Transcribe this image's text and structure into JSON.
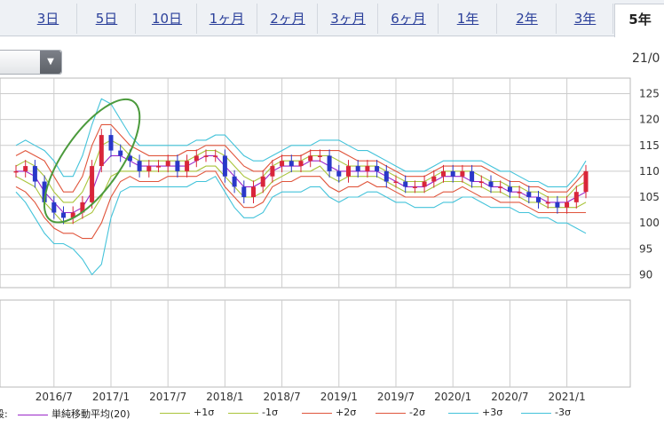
{
  "tabs": [
    {
      "label": "3日",
      "active": false
    },
    {
      "label": "5日",
      "active": false
    },
    {
      "label": "10日",
      "active": false
    },
    {
      "label": "1ヶ月",
      "active": false
    },
    {
      "label": "2ヶ月",
      "active": false
    },
    {
      "label": "3ヶ月",
      "active": false
    },
    {
      "label": "6ヶ月",
      "active": false
    },
    {
      "label": "1年",
      "active": false
    },
    {
      "label": "2年",
      "active": false
    },
    {
      "label": "3年",
      "active": false
    },
    {
      "label": "5年",
      "active": true
    }
  ],
  "date_label": "21/0",
  "legend": {
    "prefix": "段:",
    "items": [
      {
        "label": "単純移動平均(20)",
        "color": "#9b27c9"
      },
      {
        "label": "+1σ",
        "color": "#a9c43a"
      },
      {
        "label": "-1σ",
        "color": "#a9c43a"
      },
      {
        "label": "+2σ",
        "color": "#e0553c"
      },
      {
        "label": "-2σ",
        "color": "#e0553c"
      },
      {
        "label": "+3σ",
        "color": "#43c3da"
      },
      {
        "label": "-3σ",
        "color": "#43c3da"
      }
    ]
  },
  "chart_data": {
    "type": "line",
    "title": "",
    "xlabel": "",
    "ylabel": "",
    "x_ticks": [
      "2016/7",
      "2017/1",
      "2017/7",
      "2018/1",
      "2018/7",
      "2019/1",
      "2019/7",
      "2020/1",
      "2020/7",
      "2021/1"
    ],
    "y_ticks": [
      90,
      95,
      100,
      105,
      110,
      115,
      120,
      125
    ],
    "ylim": [
      87.5,
      128
    ],
    "xlim": [
      "2016/3",
      "2021/3"
    ],
    "grid": true,
    "price_series": {
      "name": "price",
      "color_up": "#d9263a",
      "color_down": "#2a38c8",
      "x": [
        "2016/3",
        "2016/4",
        "2016/5",
        "2016/6",
        "2016/7",
        "2016/8",
        "2016/9",
        "2016/10",
        "2016/11",
        "2016/12",
        "2017/1",
        "2017/2",
        "2017/3",
        "2017/4",
        "2017/5",
        "2017/6",
        "2017/7",
        "2017/8",
        "2017/9",
        "2017/10",
        "2017/11",
        "2017/12",
        "2018/1",
        "2018/2",
        "2018/3",
        "2018/4",
        "2018/5",
        "2018/6",
        "2018/7",
        "2018/8",
        "2018/9",
        "2018/10",
        "2018/11",
        "2018/12",
        "2019/1",
        "2019/2",
        "2019/3",
        "2019/4",
        "2019/5",
        "2019/6",
        "2019/7",
        "2019/8",
        "2019/9",
        "2019/10",
        "2019/11",
        "2019/12",
        "2020/1",
        "2020/2",
        "2020/3",
        "2020/4",
        "2020/5",
        "2020/6",
        "2020/7",
        "2020/8",
        "2020/9",
        "2020/10",
        "2020/11",
        "2020/12",
        "2021/1",
        "2021/2",
        "2021/3"
      ],
      "values": [
        110,
        111,
        108,
        104,
        102,
        101,
        102,
        104,
        111,
        117,
        114,
        113,
        112,
        110,
        111,
        111,
        112,
        110,
        112,
        113,
        113,
        113,
        109,
        107,
        105,
        107,
        109,
        111,
        112,
        111,
        112,
        113,
        113,
        110,
        109,
        111,
        110,
        111,
        110,
        108,
        108,
        107,
        107,
        108,
        109,
        110,
        109,
        110,
        108,
        108,
        107,
        107,
        106,
        106,
        105,
        104,
        104,
        103,
        104,
        106,
        110
      ]
    },
    "series": [
      {
        "name": "単純移動平均(20)",
        "color": "#9b27c9",
        "values": [
          110,
          110,
          109,
          106,
          104,
          102,
          102,
          103,
          106,
          111,
          113,
          113,
          112,
          111,
          111,
          111,
          111,
          111,
          111,
          112,
          113,
          113,
          111,
          109,
          107,
          107,
          108,
          110,
          111,
          111,
          111,
          112,
          112,
          111,
          110,
          110,
          110,
          110,
          110,
          109,
          108,
          107,
          107,
          107,
          108,
          109,
          109,
          109,
          108,
          108,
          107,
          107,
          106,
          106,
          105,
          105,
          104,
          104,
          104,
          105,
          106
        ]
      },
      {
        "name": "+1σ",
        "color": "#a9c43a",
        "values": [
          111,
          112,
          111,
          109,
          106,
          104,
          104,
          106,
          110,
          115,
          116,
          115,
          113,
          112,
          112,
          112,
          112,
          112,
          112,
          113,
          114,
          114,
          113,
          111,
          109,
          108,
          109,
          111,
          112,
          112,
          112,
          113,
          113,
          113,
          112,
          111,
          111,
          111,
          111,
          110,
          109,
          108,
          108,
          108,
          109,
          110,
          110,
          110,
          110,
          109,
          108,
          108,
          107,
          107,
          106,
          106,
          105,
          105,
          105,
          107,
          108
        ]
      },
      {
        "name": "-1σ",
        "color": "#a9c43a",
        "values": [
          109,
          108,
          107,
          104,
          102,
          100,
          100,
          101,
          102,
          105,
          109,
          110,
          110,
          110,
          110,
          110,
          110,
          110,
          110,
          110,
          111,
          111,
          109,
          107,
          105,
          105,
          106,
          108,
          109,
          110,
          110,
          110,
          111,
          109,
          108,
          109,
          109,
          109,
          109,
          108,
          107,
          106,
          106,
          106,
          107,
          108,
          108,
          108,
          107,
          107,
          106,
          106,
          105,
          105,
          104,
          104,
          103,
          103,
          103,
          103,
          104
        ]
      },
      {
        "name": "+2σ",
        "color": "#e0553c",
        "values": [
          113,
          114,
          113,
          112,
          109,
          106,
          106,
          109,
          115,
          119,
          119,
          117,
          115,
          114,
          113,
          113,
          113,
          113,
          114,
          114,
          115,
          115,
          115,
          113,
          111,
          110,
          110,
          112,
          113,
          113,
          113,
          114,
          114,
          114,
          114,
          113,
          112,
          112,
          112,
          111,
          110,
          109,
          109,
          109,
          110,
          111,
          111,
          111,
          111,
          111,
          110,
          109,
          108,
          108,
          107,
          107,
          106,
          106,
          106,
          108,
          110
        ]
      },
      {
        "name": "-2σ",
        "color": "#e0553c",
        "values": [
          107,
          106,
          104,
          101,
          99,
          98,
          98,
          97,
          97,
          100,
          105,
          108,
          109,
          108,
          108,
          108,
          109,
          109,
          109,
          109,
          110,
          110,
          107,
          105,
          103,
          103,
          104,
          107,
          108,
          108,
          109,
          109,
          109,
          107,
          106,
          107,
          107,
          108,
          107,
          107,
          106,
          105,
          105,
          105,
          105,
          106,
          106,
          107,
          106,
          105,
          105,
          104,
          104,
          104,
          103,
          102,
          102,
          102,
          102,
          102,
          102
        ]
      },
      {
        "name": "+3σ",
        "color": "#43c3da",
        "values": [
          115,
          116,
          115,
          114,
          112,
          109,
          109,
          113,
          119,
          124,
          123,
          120,
          117,
          115,
          115,
          115,
          115,
          115,
          115,
          116,
          116,
          117,
          117,
          115,
          113,
          112,
          112,
          113,
          114,
          115,
          115,
          115,
          116,
          116,
          116,
          115,
          114,
          114,
          113,
          112,
          111,
          110,
          110,
          110,
          111,
          112,
          112,
          112,
          112,
          112,
          111,
          110,
          110,
          109,
          108,
          108,
          107,
          107,
          107,
          109,
          112
        ]
      },
      {
        "name": "-3σ",
        "color": "#43c3da",
        "values": [
          106,
          104,
          101,
          98,
          96,
          96,
          95,
          93,
          90,
          92,
          101,
          106,
          107,
          107,
          107,
          107,
          107,
          107,
          107,
          108,
          108,
          109,
          106,
          103,
          101,
          101,
          102,
          105,
          106,
          106,
          106,
          107,
          107,
          105,
          104,
          105,
          105,
          106,
          106,
          105,
          104,
          104,
          103,
          103,
          103,
          104,
          104,
          105,
          105,
          104,
          103,
          103,
          103,
          102,
          102,
          101,
          101,
          100,
          100,
          99,
          98
        ]
      }
    ],
    "annotation": {
      "shape": "ellipse",
      "color": "#4b9a3c",
      "x_range": [
        "2016/8",
        "2017/2"
      ],
      "y_range": [
        98,
        126
      ]
    }
  }
}
